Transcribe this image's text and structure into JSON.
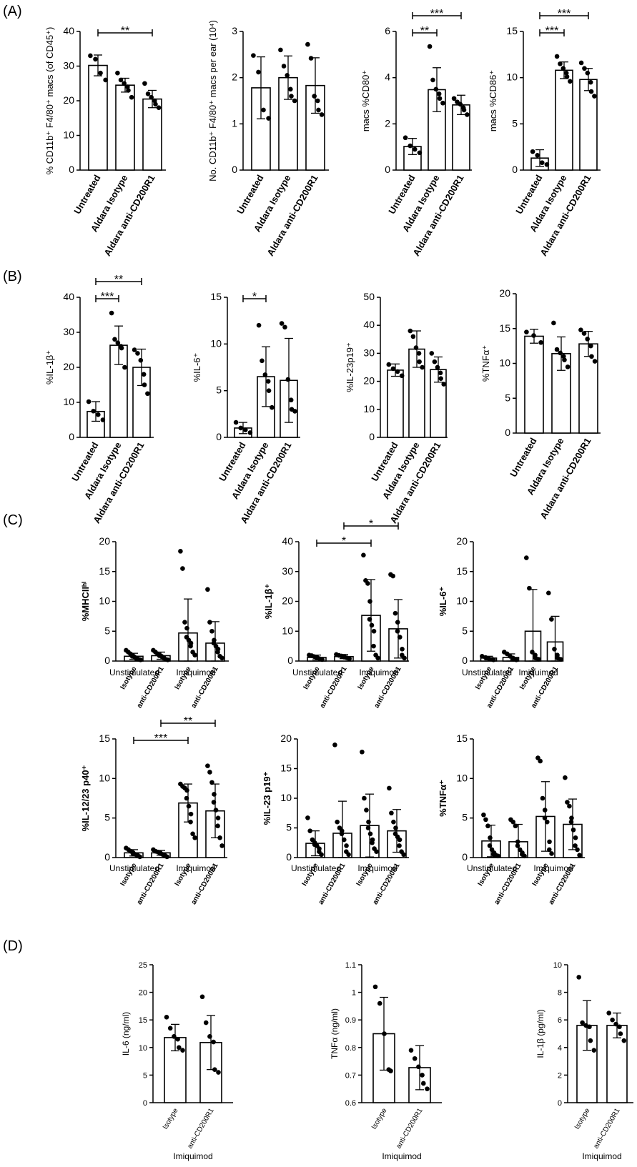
{
  "panels": [
    {
      "letter": "(A)"
    },
    {
      "letter": "(B)"
    },
    {
      "letter": "(C)"
    },
    {
      "letter": "(D)"
    }
  ],
  "chart_data": [
    {
      "id": "A1",
      "panel": 0,
      "type": "bar",
      "categories": [
        "Untreated",
        "Aldara Isotype",
        "Aldara anti-CD200R1"
      ],
      "ylabel": "% CD11b⁺ F4/80⁺ macs (of CD45⁺)",
      "ylim": [
        0,
        40
      ],
      "yticks": [
        0,
        10,
        20,
        30,
        40
      ],
      "values": [
        30.2,
        24.5,
        20.5
      ],
      "errors": [
        3.0,
        2.0,
        2.5
      ],
      "points": [
        [
          33,
          32,
          28,
          26
        ],
        [
          28,
          26,
          25,
          24,
          23,
          21
        ],
        [
          25,
          22,
          21,
          20,
          19,
          18
        ]
      ],
      "significance": [
        {
          "from": 0,
          "to": 2,
          "label": "**"
        }
      ]
    },
    {
      "id": "A2",
      "panel": 0,
      "type": "bar",
      "categories": [
        "Untreated",
        "Aldara Isotype",
        "Aldara anti-CD200R1"
      ],
      "ylabel": "No. CD11b⁺ F4/80⁺ macs per ear (10⁴)",
      "ylim": [
        0,
        3
      ],
      "yticks": [
        0,
        1,
        2,
        3
      ],
      "values": [
        1.78,
        2.0,
        1.83
      ],
      "errors": [
        0.67,
        0.47,
        0.6
      ],
      "points": [
        [
          2.48,
          2.12,
          1.3,
          1.12
        ],
        [
          2.6,
          2.25,
          2.05,
          1.75,
          1.6,
          1.5
        ],
        [
          2.72,
          2.42,
          1.6,
          1.5,
          1.3,
          1.2
        ]
      ],
      "significance": []
    },
    {
      "id": "A3",
      "panel": 0,
      "type": "bar",
      "categories": [
        "Untreated",
        "Aldara Isotype",
        "Aldara anti-CD200R1"
      ],
      "ylabel": "macs %CD80⁺",
      "ylim": [
        0,
        6
      ],
      "yticks": [
        0,
        2,
        4,
        6
      ],
      "values": [
        1.02,
        3.48,
        2.82
      ],
      "errors": [
        0.35,
        0.95,
        0.42
      ],
      "points": [
        [
          1.4,
          1.05,
          0.9,
          0.75
        ],
        [
          5.35,
          3.9,
          3.5,
          3.3,
          3.1,
          2.9
        ],
        [
          3.1,
          2.95,
          2.85,
          2.7,
          2.6,
          2.4
        ]
      ],
      "significance": [
        {
          "from": 0,
          "to": 1,
          "label": "**"
        },
        {
          "from": 0,
          "to": 2,
          "label": "***"
        }
      ]
    },
    {
      "id": "A4",
      "panel": 0,
      "type": "bar",
      "categories": [
        "Untreated",
        "Aldara Isotype",
        "Aldara anti-CD200R1"
      ],
      "ylabel": "macs %CD86⁺",
      "ylim": [
        0,
        15
      ],
      "yticks": [
        0,
        5,
        10,
        15
      ],
      "values": [
        1.3,
        10.8,
        9.8
      ],
      "errors": [
        0.9,
        0.9,
        1.2
      ],
      "points": [
        [
          2.0,
          1.6,
          0.8,
          0.6
        ],
        [
          12.3,
          11.5,
          11.0,
          10.5,
          10.1,
          9.6
        ],
        [
          11.6,
          11.0,
          10.5,
          9.5,
          8.5,
          8.0
        ]
      ],
      "significance": [
        {
          "from": 0,
          "to": 1,
          "label": "***"
        },
        {
          "from": 0,
          "to": 2,
          "label": "***"
        }
      ]
    },
    {
      "id": "B1",
      "panel": 1,
      "type": "bar",
      "categories": [
        "Untreated",
        "Aldara Isotype",
        "Aldara anti-CD200R1"
      ],
      "ylabel": "%IL-1β⁺",
      "ylim": [
        0,
        40
      ],
      "yticks": [
        0,
        10,
        20,
        30,
        40
      ],
      "values": [
        7.4,
        26.3,
        20.0
      ],
      "errors": [
        2.8,
        5.5,
        5.2
      ],
      "points": [
        [
          10.2,
          7.5,
          6.5,
          5.0
        ],
        [
          35.5,
          28,
          27,
          26,
          25.5,
          20
        ],
        [
          25,
          24,
          22,
          18,
          15,
          12.5
        ]
      ],
      "significance": [
        {
          "from": 0,
          "to": 1,
          "label": "***"
        },
        {
          "from": 0,
          "to": 2,
          "label": "**"
        }
      ]
    },
    {
      "id": "B2",
      "panel": 1,
      "type": "bar",
      "categories": [
        "Untreated",
        "Aldara Isotype",
        "Aldara anti-CD200R1"
      ],
      "ylabel": "%IL-6⁺",
      "ylim": [
        0,
        15
      ],
      "yticks": [
        0,
        5,
        10,
        15
      ],
      "values": [
        1.0,
        6.5,
        6.1
      ],
      "errors": [
        0.6,
        3.2,
        4.5
      ],
      "points": [
        [
          1.6,
          1.0,
          0.8,
          0.5
        ],
        [
          12.0,
          8.2,
          6.7,
          6.0,
          5.0,
          3.2
        ],
        [
          12.2,
          11.8,
          6.2,
          4.0,
          3.0,
          2.8
        ]
      ],
      "significance": [
        {
          "from": 0,
          "to": 1,
          "label": "*"
        }
      ]
    },
    {
      "id": "B3",
      "panel": 1,
      "type": "bar",
      "categories": [
        "Untreated",
        "Aldara Isotype",
        "Aldara anti-CD200R1"
      ],
      "ylabel": "%IL-23p19⁺",
      "ylim": [
        0,
        50
      ],
      "yticks": [
        0,
        10,
        20,
        30,
        40,
        50
      ],
      "values": [
        24.0,
        31.5,
        24.2
      ],
      "errors": [
        2.2,
        6.5,
        4.5
      ],
      "points": [
        [
          26,
          24.5,
          23.5,
          22
        ],
        [
          38,
          36,
          32,
          30,
          27,
          25
        ],
        [
          30,
          27,
          25,
          23,
          21,
          19
        ]
      ],
      "significance": []
    },
    {
      "id": "B4",
      "panel": 1,
      "type": "bar",
      "categories": [
        "Untreated",
        "Aldara Isotype",
        "Aldara anti-CD200R1"
      ],
      "ylabel": "%TNFα⁺",
      "ylim": [
        0,
        20
      ],
      "yticks": [
        0,
        5,
        10,
        15,
        20
      ],
      "values": [
        13.9,
        11.4,
        12.8
      ],
      "errors": [
        1.0,
        2.4,
        1.8
      ],
      "points": [
        [
          14.5,
          14.0,
          13.0
        ],
        [
          15.8,
          12.0,
          11.5,
          11.0,
          10.5,
          9.5
        ],
        [
          14.8,
          14.3,
          13.5,
          12.5,
          11.0,
          10.3
        ]
      ],
      "significance": []
    },
    {
      "id": "C1",
      "panel": 2,
      "type": "bar",
      "categories": [
        "Isotype",
        "anti-CD200R1",
        "Isotype",
        "anti-CD200R1"
      ],
      "groups": [
        "Unstimulated",
        "Imiquimod"
      ],
      "ylabel": "%MHCIIʰⁱ",
      "ylim": [
        0,
        20
      ],
      "yticks": [
        0,
        5,
        10,
        15,
        20
      ],
      "values": [
        0.8,
        0.9,
        4.7,
        3.0
      ],
      "errors": [
        0.5,
        0.6,
        5.7,
        3.6
      ],
      "points": [
        [
          1.8,
          1.5,
          1.2,
          1.0,
          0.8,
          0.7,
          0.5,
          0.4,
          0.3,
          0.2
        ],
        [
          1.8,
          1.5,
          1.2,
          1.0,
          0.9,
          0.8,
          0.6,
          0.5,
          0.3,
          0.2
        ],
        [
          18.4,
          15.5,
          6.5,
          5.5,
          4.0,
          3.5,
          3.0,
          2.5,
          1.5,
          1.0
        ],
        [
          12.0,
          6.5,
          5.0,
          3.5,
          3.0,
          2.5,
          2.0,
          1.5,
          0.8,
          0.5
        ]
      ],
      "significance": []
    },
    {
      "id": "C2",
      "panel": 2,
      "type": "bar",
      "categories": [
        "Isotype",
        "anti-CD200R1",
        "Isotype",
        "anti-CD200R1"
      ],
      "groups": [
        "Unstimulated",
        "Imiquimod"
      ],
      "ylabel": "%IL-1β⁺",
      "ylim": [
        0,
        40
      ],
      "yticks": [
        0,
        10,
        20,
        30,
        40
      ],
      "values": [
        1.2,
        1.5,
        15.3,
        10.8
      ],
      "errors": [
        0.8,
        0.7,
        12.0,
        9.8
      ],
      "points": [
        [
          2.0,
          1.8,
          1.5,
          1.3,
          1.0,
          0.8,
          0.6,
          0.5
        ],
        [
          2.2,
          1.9,
          1.7,
          1.5,
          1.3,
          1.1,
          0.9,
          0.7
        ],
        [
          35.5,
          27,
          26,
          20,
          14,
          12,
          10,
          5,
          2,
          1
        ],
        [
          29,
          28.5,
          16,
          13,
          10,
          8,
          4,
          2,
          1
        ]
      ],
      "significance": [
        {
          "from": 0,
          "to": 2,
          "label": "*"
        },
        {
          "from": 1,
          "to": 3,
          "label": "*"
        }
      ]
    },
    {
      "id": "C3",
      "panel": 2,
      "type": "bar",
      "categories": [
        "Isotype",
        "anti-CD200R1",
        "Isotype",
        "anti-CD200R1"
      ],
      "groups": [
        "Unstimulated",
        "Imiquimod"
      ],
      "ylabel": "%IL-6⁺",
      "ylim": [
        0,
        20
      ],
      "yticks": [
        0,
        5,
        10,
        15,
        20
      ],
      "values": [
        0.5,
        0.6,
        5.0,
        3.2
      ],
      "errors": [
        0.3,
        0.6,
        7.0,
        4.3
      ],
      "points": [
        [
          0.8,
          0.6,
          0.4,
          0.3,
          0.2
        ],
        [
          1.5,
          1.2,
          0.8,
          0.5,
          0.3,
          0.2
        ],
        [
          17.3,
          12.2,
          1.5,
          1.0,
          0.5,
          0.3
        ],
        [
          11.4,
          7.0,
          2.0,
          1.0,
          0.5,
          0.3
        ]
      ],
      "significance": []
    },
    {
      "id": "C4",
      "panel": 2,
      "type": "bar",
      "categories": [
        "Isotype",
        "anti-CD200R1",
        "Isotype",
        "anti-CD200R1"
      ],
      "groups": [
        "Unstimulated",
        "Imiquimod"
      ],
      "ylabel": "%IL-12/23 p40⁺",
      "ylim": [
        0,
        15
      ],
      "yticks": [
        0,
        5,
        10,
        15
      ],
      "values": [
        0.6,
        0.6,
        6.9,
        5.9
      ],
      "errors": [
        0.4,
        0.3,
        2.4,
        3.4
      ],
      "points": [
        [
          1.2,
          1.0,
          0.8,
          0.6,
          0.5,
          0.4,
          0.3,
          0.2,
          0.1
        ],
        [
          1.0,
          0.8,
          0.7,
          0.6,
          0.5,
          0.4,
          0.3,
          0.2,
          0.1
        ],
        [
          9.3,
          9.0,
          8.8,
          8.5,
          7.5,
          6.5,
          5.5,
          4.5,
          3.0,
          2.5
        ],
        [
          11.6,
          10.8,
          9.5,
          8.0,
          7.0,
          6.0,
          5.0,
          4.0,
          2.5,
          1.5
        ]
      ],
      "significance": [
        {
          "from": 0,
          "to": 2,
          "label": "***"
        },
        {
          "from": 1,
          "to": 3,
          "label": "**"
        }
      ]
    },
    {
      "id": "C5",
      "panel": 2,
      "type": "bar",
      "categories": [
        "Isotype",
        "anti-CD200R1",
        "Isotype",
        "anti-CD200R1"
      ],
      "groups": [
        "Unstimulated",
        "Imiquimod"
      ],
      "ylabel": "%IL-23 p19⁺",
      "ylim": [
        0,
        20
      ],
      "yticks": [
        0,
        5,
        10,
        15,
        20
      ],
      "values": [
        2.4,
        4.1,
        5.4,
        4.5
      ],
      "errors": [
        2.1,
        5.4,
        5.3,
        3.6
      ],
      "points": [
        [
          6.7,
          4.5,
          3.0,
          2.5,
          2.2,
          2.0,
          1.5,
          1.0,
          0.5
        ],
        [
          19.0,
          6.0,
          5.0,
          4.5,
          4.0,
          3.0,
          2.0,
          1.0,
          0.5
        ],
        [
          17.8,
          10.0,
          8.0,
          6.0,
          5.0,
          4.0,
          3.0,
          2.5,
          1.5,
          1.0
        ],
        [
          11.7,
          7.5,
          6.0,
          5.0,
          4.0,
          3.5,
          3.0,
          2.0,
          1.0,
          0.5
        ]
      ],
      "significance": []
    },
    {
      "id": "C6",
      "panel": 2,
      "type": "bar",
      "categories": [
        "Isotype",
        "anti-CD200R1",
        "Isotype",
        "anti-CD200R1"
      ],
      "groups": [
        "Unstimulated",
        "Imiquimod"
      ],
      "ylabel": "%TNFα⁺",
      "ylim": [
        0,
        15
      ],
      "yticks": [
        0,
        5,
        10,
        15
      ],
      "values": [
        2.1,
        2.0,
        5.2,
        4.2
      ],
      "errors": [
        2.0,
        2.2,
        4.4,
        3.2
      ],
      "points": [
        [
          5.4,
          4.8,
          4.0,
          2.5,
          1.5,
          1.0,
          0.6,
          0.4,
          0.3,
          0.2
        ],
        [
          4.8,
          4.5,
          4.0,
          2.0,
          1.5,
          1.0,
          0.6,
          0.4,
          0.2
        ],
        [
          12.6,
          12.2,
          7.5,
          6.0,
          5.0,
          4.5,
          2.0,
          1.0,
          0.5
        ],
        [
          10.1,
          7.0,
          6.5,
          5.0,
          4.5,
          3.5,
          2.5,
          1.5,
          1.0,
          0.3
        ]
      ],
      "significance": []
    },
    {
      "id": "D1",
      "panel": 3,
      "type": "bar",
      "categories": [
        "Isotype",
        "anti-CD200R1"
      ],
      "groups": [
        "Imiquimod"
      ],
      "ylabel": "IL-6 (ng/ml)",
      "ylim": [
        0,
        25
      ],
      "yticks": [
        0,
        5,
        10,
        15,
        20,
        25
      ],
      "values": [
        11.8,
        10.9
      ],
      "errors": [
        2.4,
        4.9
      ],
      "points": [
        [
          15.5,
          13.5,
          12.0,
          11.5,
          10.0,
          9.5
        ],
        [
          19.2,
          14.5,
          12.0,
          11.0,
          6.0,
          5.5
        ]
      ],
      "significance": []
    },
    {
      "id": "D2",
      "panel": 3,
      "type": "bar",
      "categories": [
        "Isotype",
        "anti-CD200R1"
      ],
      "groups": [
        "Imiquimod"
      ],
      "ylabel": "TNFα (ng/ml)",
      "ylim": [
        0.6,
        1.1
      ],
      "yticks": [
        0.6,
        0.7,
        0.8,
        0.9,
        1.0,
        1.1
      ],
      "values": [
        0.85,
        0.727
      ],
      "errors": [
        0.132,
        0.08
      ],
      "points": [
        [
          1.02,
          0.96,
          0.85,
          0.72,
          0.715
        ],
        [
          0.79,
          0.76,
          0.73,
          0.7,
          0.67,
          0.65
        ]
      ],
      "significance": []
    },
    {
      "id": "D3",
      "panel": 3,
      "type": "bar",
      "categories": [
        "Isotype",
        "anti-CD200R1"
      ],
      "groups": [
        "Imiquimod"
      ],
      "ylabel": "IL-1β (pg/ml)",
      "ylim": [
        0,
        10
      ],
      "yticks": [
        0,
        2,
        4,
        6,
        8,
        10
      ],
      "values": [
        5.6,
        5.6
      ],
      "errors": [
        1.8,
        0.9
      ],
      "points": [
        [
          9.1,
          5.8,
          5.6,
          5.5,
          4.5,
          3.8
        ],
        [
          6.5,
          6.0,
          5.7,
          5.5,
          5.0,
          4.5
        ]
      ],
      "significance": []
    }
  ]
}
